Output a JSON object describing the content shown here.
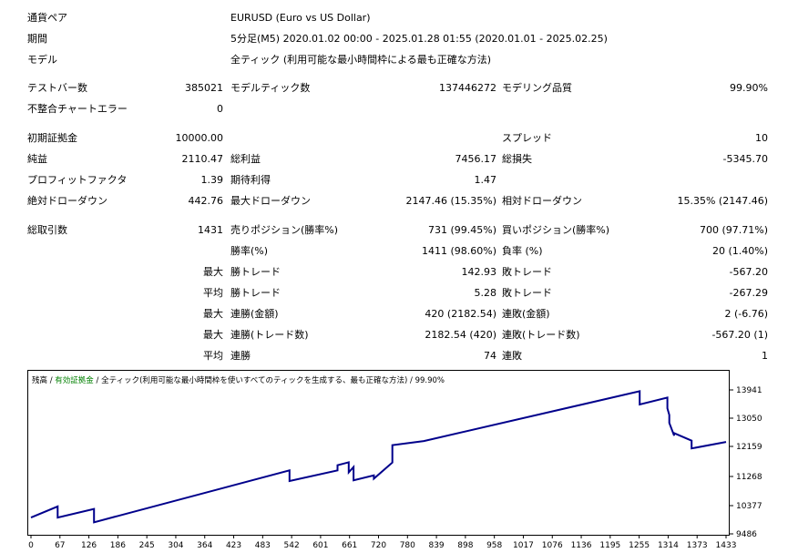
{
  "header": {
    "symbol_label": "通貨ペア",
    "symbol_value": "EURUSD (Euro vs US Dollar)",
    "period_label": "期間",
    "period_value": "5分足(M5) 2020.01.02 00:00 - 2025.01.28 01:55 (2020.01.01 - 2025.02.25)",
    "model_label": "モデル",
    "model_value": "全ティック (利用可能な最小時間枠による最も正確な方法)"
  },
  "stats": {
    "bars_label": "テストバー数",
    "bars_value": "385021",
    "ticks_label": "モデルティック数",
    "ticks_value": "137446272",
    "quality_label": "モデリング品質",
    "quality_value": "99.90%",
    "mismatch_label": "不整合チャートエラー",
    "mismatch_value": "0",
    "deposit_label": "初期証拠金",
    "deposit_value": "10000.00",
    "spread_label": "スプレッド",
    "spread_value": "10",
    "net_profit_label": "純益",
    "net_profit_value": "2110.47",
    "gross_profit_label": "総利益",
    "gross_profit_value": "7456.17",
    "gross_loss_label": "総損失",
    "gross_loss_value": "-5345.70",
    "pf_label": "プロフィットファクタ",
    "pf_value": "1.39",
    "expected_label": "期待利得",
    "expected_value": "1.47",
    "abs_dd_label": "絶対ドローダウン",
    "abs_dd_value": "442.76",
    "max_dd_label": "最大ドローダウン",
    "max_dd_value": "2147.46 (15.35%)",
    "rel_dd_label": "相対ドローダウン",
    "rel_dd_value": "15.35% (2147.46)",
    "total_trades_label": "総取引数",
    "total_trades_value": "1431",
    "short_label": "売りポジション(勝率%)",
    "short_value": "731 (99.45%)",
    "long_label": "買いポジション(勝率%)",
    "long_value": "700 (97.71%)",
    "win_rate_label": "勝率(%)",
    "win_rate_value": "1411 (98.60%)",
    "loss_rate_label": "負率 (%)",
    "loss_rate_value": "20 (1.40%)",
    "max_prefix": "最大",
    "avg_prefix": "平均",
    "max_win_label": "勝トレード",
    "max_win_value": "142.93",
    "max_loss_label": "敗トレード",
    "max_loss_value": "-567.20",
    "avg_win_label": "勝トレード",
    "avg_win_value": "5.28",
    "avg_loss_label": "敗トレード",
    "avg_loss_value": "-267.29",
    "consec_wins_money_label": "連勝(金額)",
    "consec_wins_money_value": "420 (2182.54)",
    "consec_losses_money_label": "連敗(金額)",
    "consec_losses_money_value": "2 (-6.76)",
    "consec_wins_count_label": "連勝(トレード数)",
    "consec_wins_count_value": "2182.54 (420)",
    "consec_losses_count_label": "連敗(トレード数)",
    "consec_losses_count_value": "-567.20 (1)",
    "avg_consec_wins_label": "連勝",
    "avg_consec_wins_value": "74",
    "avg_consec_losses_label": "連敗",
    "avg_consec_losses_value": "1"
  },
  "chart_data": {
    "type": "line",
    "legend": {
      "balance": "残高",
      "sep1": " / ",
      "equity": "有効証拠金",
      "sep2": " / ",
      "model": "全ティック(利用可能な最小時間枠を使いすべてのティックを生成する、最も正確な方法)",
      "sep3": " / ",
      "quality": "99.90%"
    },
    "colors": {
      "balance": "#00008b",
      "equity": "#008000",
      "axis": "#000000"
    },
    "x_ticks": [
      "0",
      "67",
      "126",
      "186",
      "245",
      "304",
      "364",
      "423",
      "483",
      "542",
      "601",
      "661",
      "720",
      "780",
      "839",
      "898",
      "958",
      "1017",
      "1076",
      "1136",
      "1195",
      "1255",
      "1314",
      "1373",
      "1433"
    ],
    "y_ticks": [
      "13941",
      "13050",
      "12159",
      "11268",
      "10377",
      "9486"
    ],
    "ylim": [
      9486,
      14300
    ],
    "xlim": [
      0,
      1433
    ],
    "series": [
      {
        "x": [
          0,
          55,
          55,
          130,
          130,
          533,
          533,
          632,
          632,
          655,
          655,
          665,
          665,
          707,
          707,
          745,
          745,
          810,
          1255,
          1255,
          1312,
          1312,
          1316,
          1316,
          1326,
          1326,
          1362,
          1362,
          1433
        ],
        "y": [
          10000,
          10350,
          10000,
          10270,
          9850,
          11450,
          11130,
          11450,
          11600,
          11690,
          11390,
          11550,
          11150,
          11300,
          11200,
          11680,
          12200,
          12330,
          13900,
          13480,
          13700,
          13360,
          13150,
          12900,
          12500,
          12580,
          12340,
          12100,
          12300
        ]
      }
    ]
  }
}
